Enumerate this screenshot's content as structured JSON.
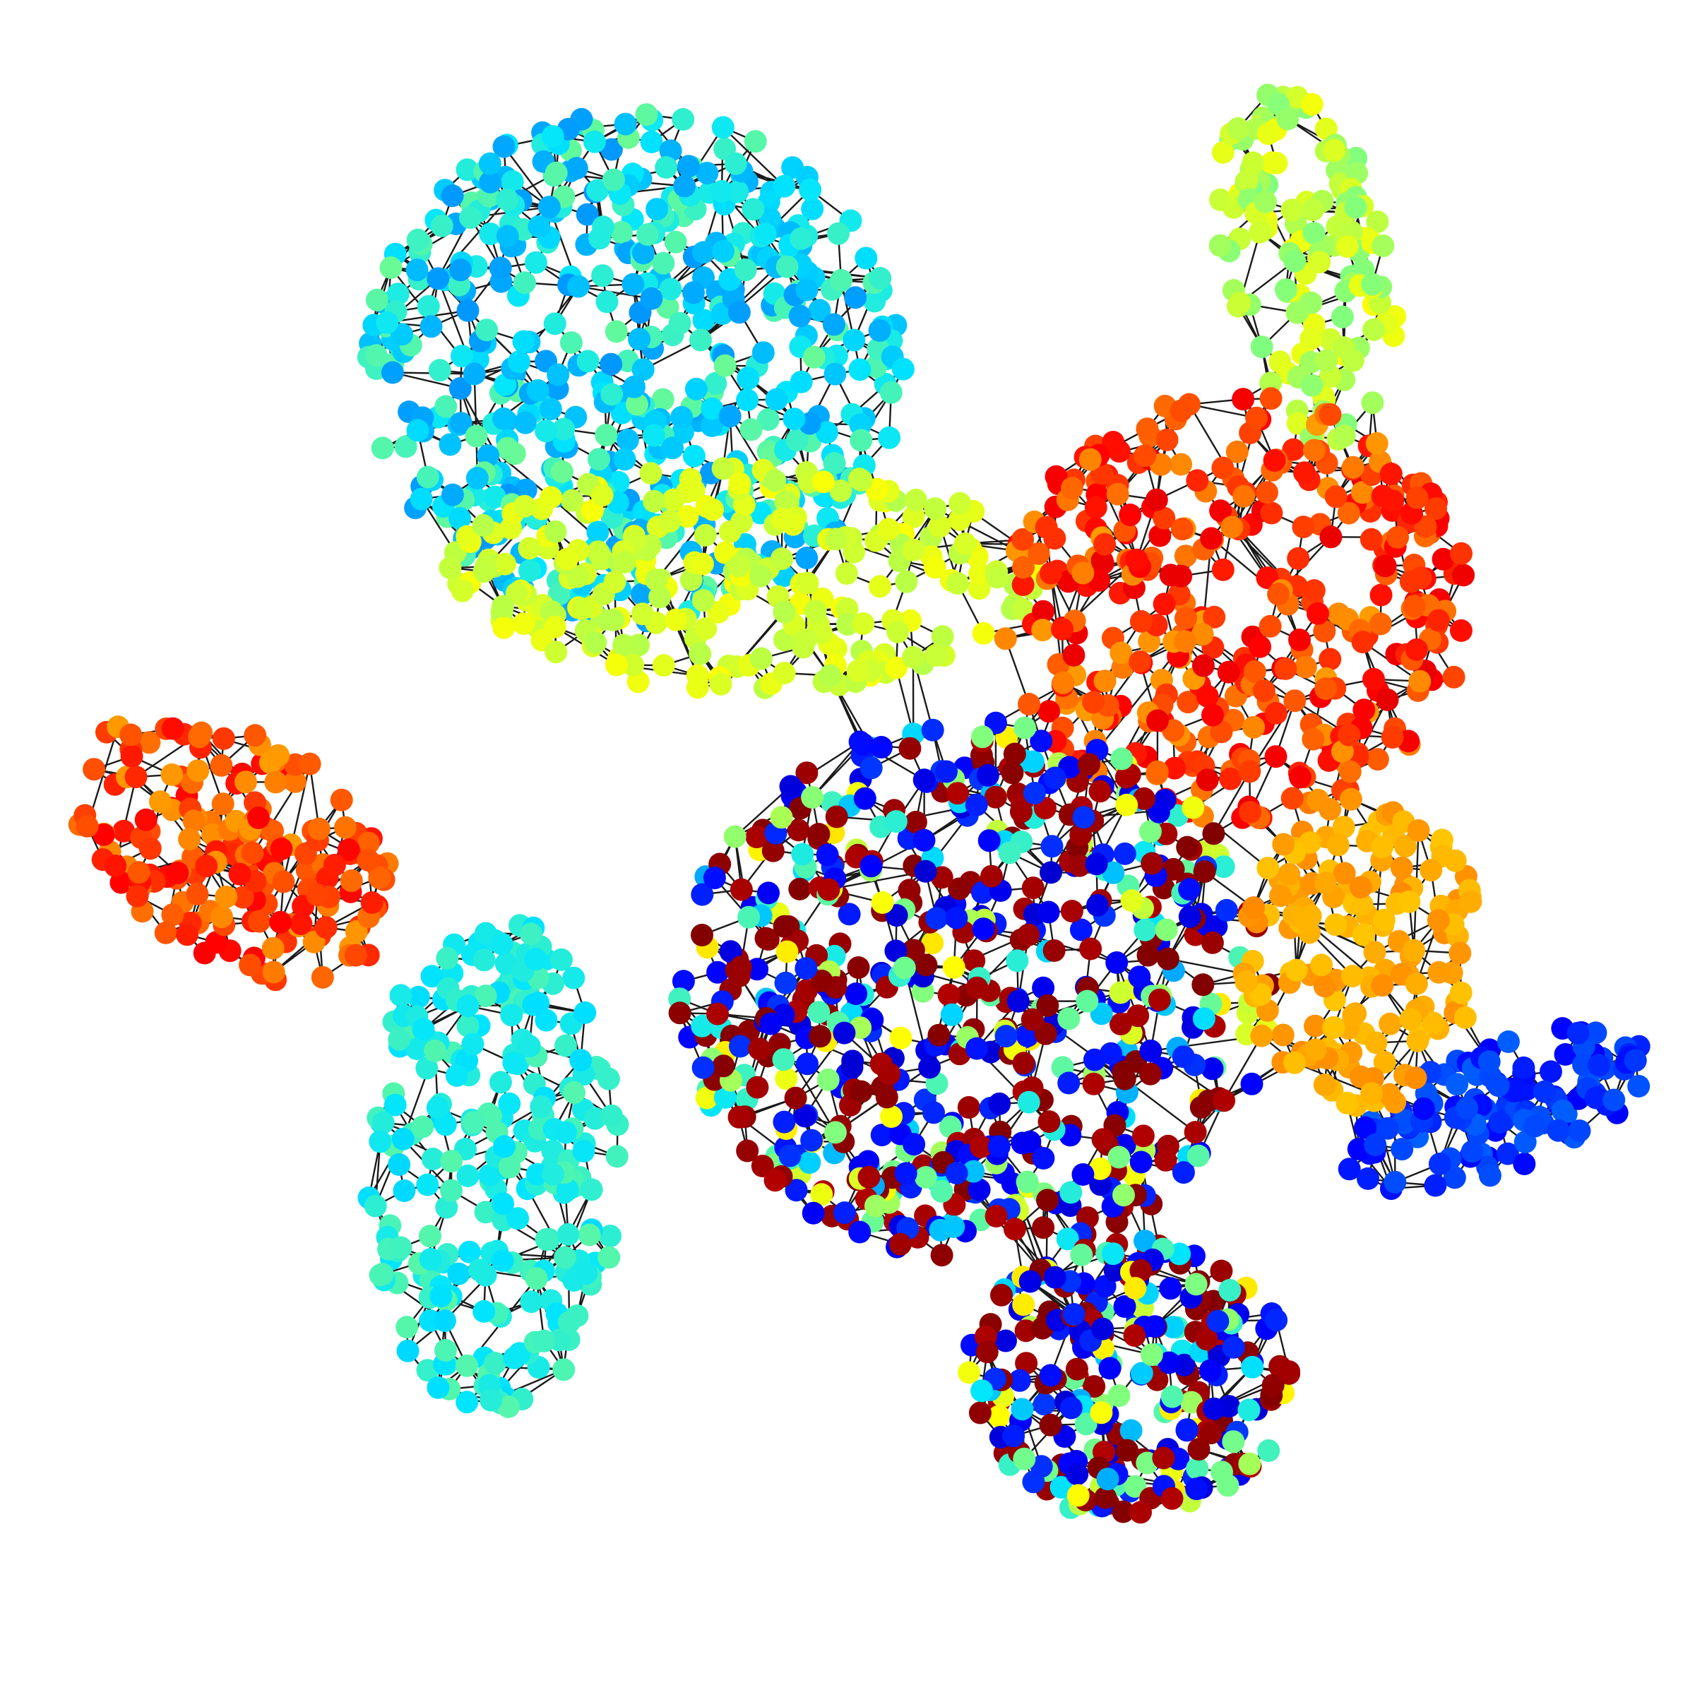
{
  "figure": {
    "type": "mesh-graph",
    "background": "#ffffff",
    "edge_color": "#1a1a1a",
    "node_colormap": [
      "#00007f",
      "#0000ff",
      "#007fff",
      "#00e5ff",
      "#7fff7f",
      "#ffff00",
      "#ff7f00",
      "#ff0000",
      "#7f0000"
    ],
    "node_count_estimate": 3000,
    "regions": [
      {
        "name": "upper-cylinder",
        "color_range": [
          "green",
          "blue"
        ]
      },
      {
        "name": "left-fin",
        "color_range": [
          "orange",
          "red"
        ]
      },
      {
        "name": "right-horn",
        "color_range": [
          "green",
          "yellow"
        ]
      },
      {
        "name": "central-body",
        "color_range": [
          "dark-red",
          "blue"
        ]
      },
      {
        "name": "lower-left-lobe",
        "color_range": [
          "cyan",
          "green"
        ]
      },
      {
        "name": "lower-right-fin",
        "color_range": [
          "dark-blue",
          "dark-red"
        ]
      },
      {
        "name": "right-wing",
        "color_range": [
          "blue",
          "blue"
        ]
      }
    ]
  }
}
